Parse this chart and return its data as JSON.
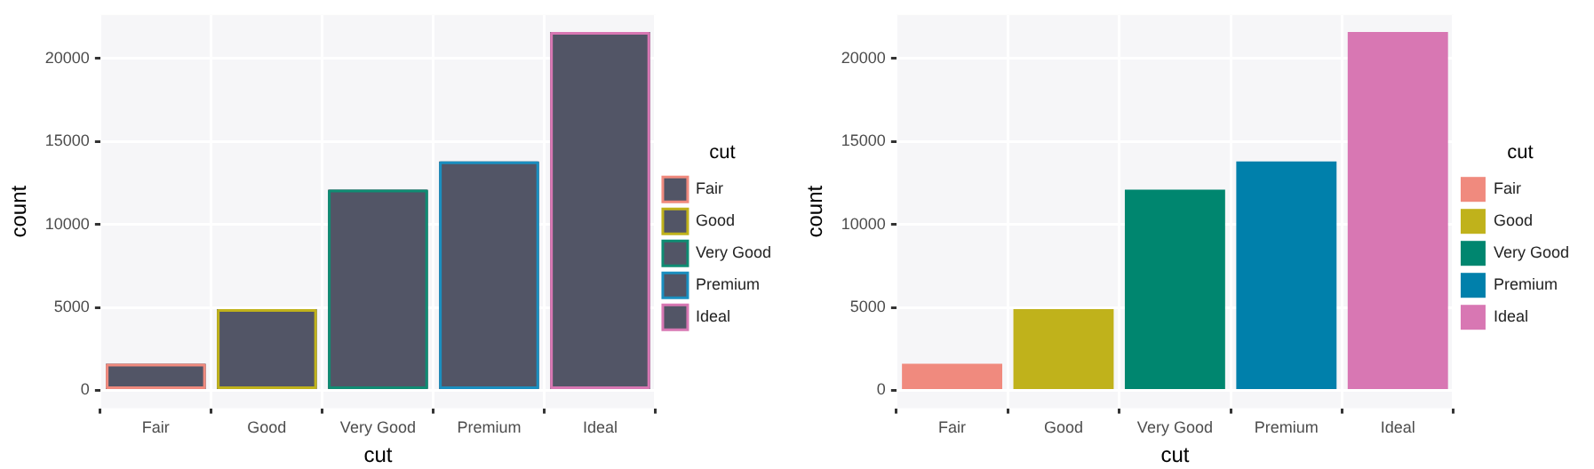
{
  "chart_data": [
    {
      "type": "bar",
      "xlabel": "cut",
      "ylabel": "count",
      "legend_title": "cut",
      "categories": [
        "Fair",
        "Good",
        "Very Good",
        "Premium",
        "Ideal"
      ],
      "colors": [
        "#f08a7e",
        "#c0b21b",
        "#0f8c73",
        "#1a8fc0",
        "#d877b3"
      ],
      "series": [
        {
          "name": "Fair",
          "color": "#525566",
          "values": [
            1600,
            null,
            null,
            null,
            null
          ]
        },
        {
          "name": "Good",
          "color": "#525566",
          "values": [
            null,
            4900,
            null,
            null,
            null
          ]
        },
        {
          "name": "Very Good",
          "color": "#525566",
          "values": [
            null,
            null,
            12100,
            null,
            null
          ]
        },
        {
          "name": "Premium",
          "color": "#525566",
          "values": [
            null,
            null,
            null,
            13800,
            null
          ]
        },
        {
          "name": "Ideal",
          "color": "#525566",
          "values": [
            null,
            null,
            null,
            null,
            21600
          ]
        }
      ],
      "ylim": [
        -1078,
        22629
      ],
      "yticks": [
        0,
        5000,
        10000,
        15000,
        20000
      ],
      "grid": true,
      "legend": "right"
    },
    {
      "type": "bar",
      "xlabel": "cut",
      "ylabel": "count",
      "legend_title": "cut",
      "categories": [
        "Fair",
        "Good",
        "Very Good",
        "Premium",
        "Ideal"
      ],
      "series": [
        {
          "name": "Fair",
          "color": "#f08a7e",
          "values": [
            1600,
            null,
            null,
            null,
            null
          ]
        },
        {
          "name": "Good",
          "color": "#c0b21b",
          "values": [
            null,
            4900,
            null,
            null,
            null
          ]
        },
        {
          "name": "Very Good",
          "color": "#00866f",
          "values": [
            null,
            null,
            12100,
            null,
            null
          ]
        },
        {
          "name": "Premium",
          "color": "#0080ab",
          "values": [
            null,
            null,
            null,
            13800,
            null
          ]
        },
        {
          "name": "Ideal",
          "color": "#d877b3",
          "values": [
            null,
            null,
            null,
            null,
            21600
          ]
        }
      ],
      "ylim": [
        -1078,
        22629
      ],
      "yticks": [
        0,
        5000,
        10000,
        15000,
        20000
      ],
      "grid": true,
      "legend": "right"
    }
  ]
}
